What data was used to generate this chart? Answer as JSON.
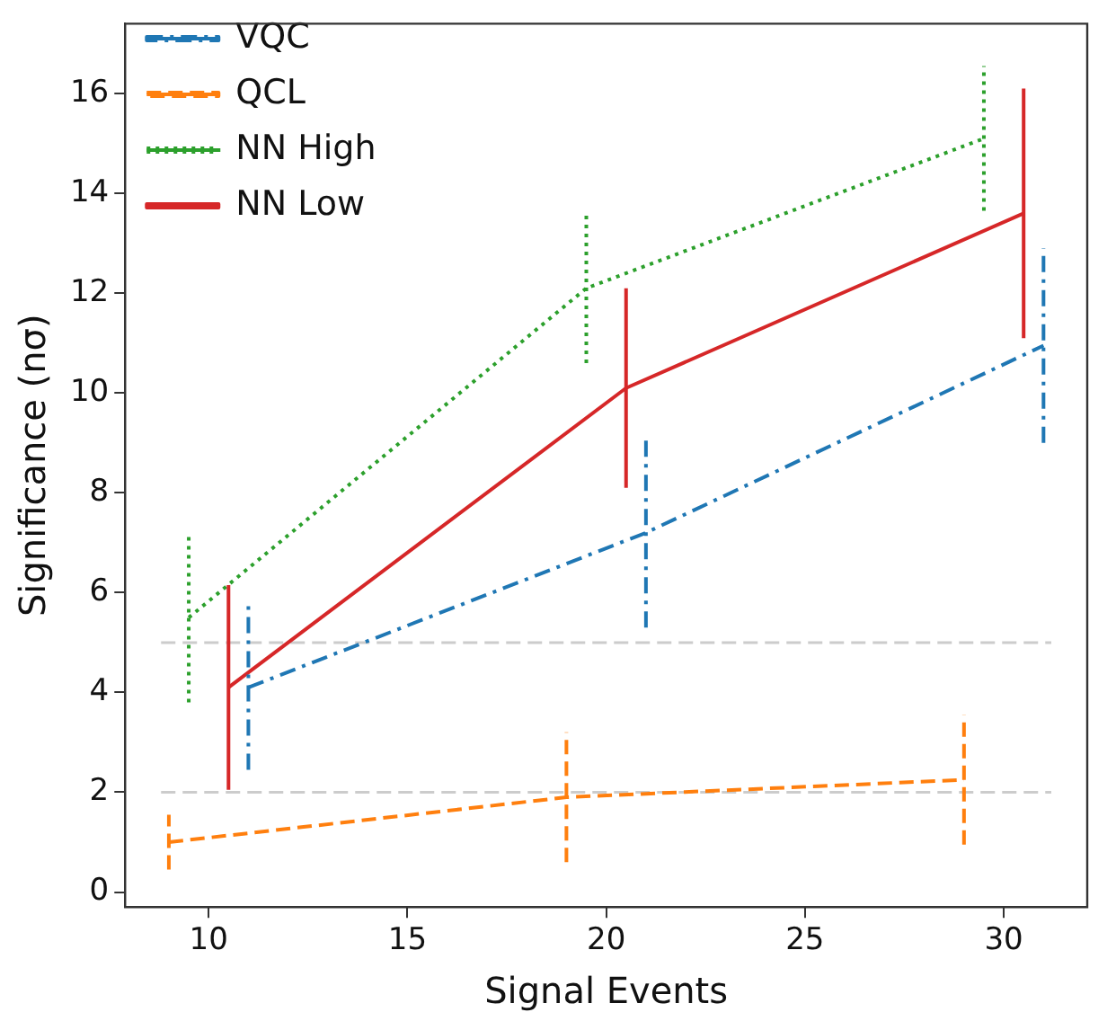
{
  "chart_data": {
    "type": "line",
    "xlabel": "Signal Events",
    "ylabel": "Significance (nσ)",
    "xlim": [
      7.9,
      32.1
    ],
    "xticks": [
      10,
      15,
      20,
      25,
      30
    ],
    "ylim": [
      -0.3,
      17.4
    ],
    "yticks": [
      0,
      2,
      4,
      6,
      8,
      10,
      12,
      14,
      16
    ],
    "legend": "top left",
    "grid": false,
    "marker": "none",
    "ref_lines": [
      {
        "axis": "y",
        "value": 5,
        "color": "#cccccc",
        "line_style": "dashed"
      },
      {
        "axis": "y",
        "value": 2,
        "color": "#cccccc",
        "line_style": "dashed"
      }
    ],
    "series": [
      {
        "name": "VQC",
        "color": "#1f77b4",
        "line_style": "dashdot",
        "x": [
          11,
          21,
          31
        ],
        "values": [
          4.1,
          7.2,
          10.95
        ],
        "errors": [
          1.65,
          1.9,
          1.95
        ]
      },
      {
        "name": "QCL",
        "color": "#ff7f0e",
        "line_style": "dashed",
        "x": [
          9,
          19,
          29
        ],
        "values": [
          1.0,
          1.9,
          2.25
        ],
        "errors": [
          0.55,
          1.3,
          1.3
        ]
      },
      {
        "name": "NN High",
        "color": "#2ca02c",
        "line_style": "dotted",
        "x": [
          9.5,
          19.5,
          29.5
        ],
        "values": [
          5.5,
          12.1,
          15.1
        ],
        "errors": [
          1.7,
          1.5,
          1.45
        ]
      },
      {
        "name": "NN Low",
        "color": "#d62728",
        "line_style": "solid",
        "x": [
          10.5,
          20.5,
          30.5
        ],
        "values": [
          4.1,
          10.1,
          13.6
        ],
        "errors": [
          2.05,
          2.0,
          2.5
        ]
      }
    ]
  }
}
